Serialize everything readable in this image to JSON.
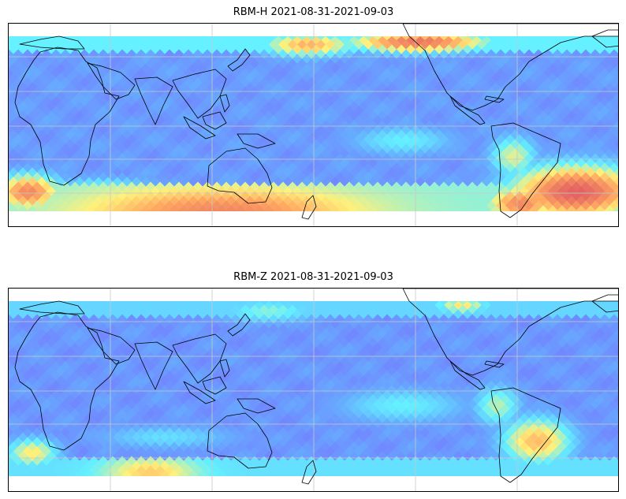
{
  "panels": [
    {
      "title": "RBM-H 2021-08-31-2021-09-03",
      "hotspots": "h"
    },
    {
      "title": "RBM-Z 2021-08-31-2021-09-03",
      "hotspots": "z"
    }
  ],
  "colors": {
    "low": "#6a6bff",
    "mid": "#5aa8ff",
    "cyan": "#58f0ff",
    "yellow": "#fff070",
    "orange": "#ffa055",
    "high": "#e05555",
    "land": "#000000",
    "grid": "#c8c8c8"
  }
}
